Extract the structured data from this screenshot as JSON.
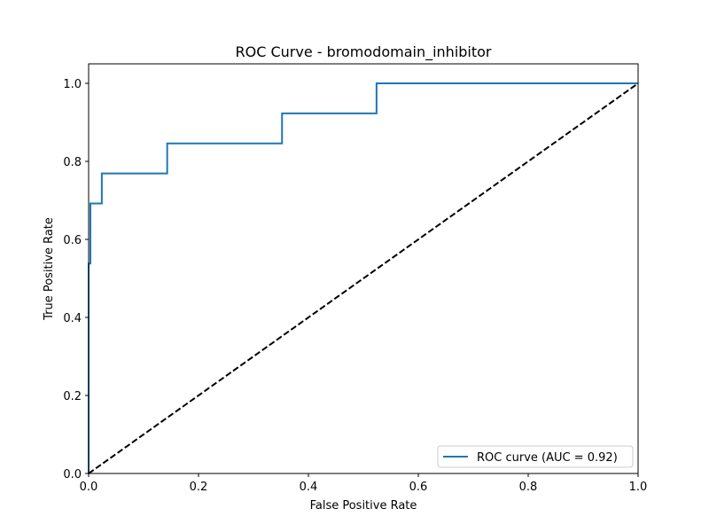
{
  "chart_data": {
    "type": "line",
    "title": "ROC Curve - bromodomain_inhibitor",
    "xlabel": "False Positive Rate",
    "ylabel": "True Positive Rate",
    "xlim": [
      0.0,
      1.0
    ],
    "ylim": [
      0.0,
      1.05
    ],
    "x_ticks": [
      "0.0",
      "0.2",
      "0.4",
      "0.6",
      "0.8",
      "1.0"
    ],
    "y_ticks": [
      "0.0",
      "0.2",
      "0.4",
      "0.6",
      "0.8",
      "1.0"
    ],
    "x_tick_values": [
      0.0,
      0.2,
      0.4,
      0.6,
      0.8,
      1.0
    ],
    "y_tick_values": [
      0.0,
      0.2,
      0.4,
      0.6,
      0.8,
      1.0
    ],
    "grid": false,
    "legend_position": "lower-right",
    "series": [
      {
        "name": "ROC curve (AUC = 0.92)",
        "color": "#1f77b4",
        "style": "solid",
        "x": [
          0.0,
          0.0,
          0.0,
          0.0,
          0.0032,
          0.0032,
          0.024,
          0.024,
          0.143,
          0.143,
          0.352,
          0.352,
          0.524,
          0.524,
          1.0
        ],
        "y": [
          0.0,
          0.385,
          0.385,
          0.538,
          0.538,
          0.692,
          0.692,
          0.769,
          0.769,
          0.846,
          0.846,
          0.923,
          0.923,
          1.0,
          1.0
        ]
      },
      {
        "color": "#000000",
        "style": "dashed",
        "x": [
          0.0,
          1.0
        ],
        "y": [
          0.0,
          1.0
        ]
      }
    ]
  }
}
